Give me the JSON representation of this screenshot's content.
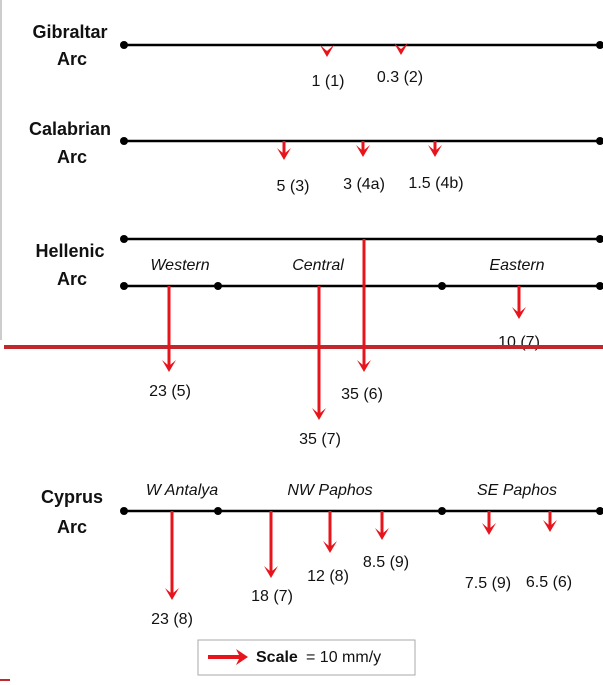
{
  "arcs": [
    {
      "name": [
        "Gibraltar",
        "Arc"
      ],
      "rates": [
        "1 (1)",
        "0.3 (2)"
      ]
    },
    {
      "name": [
        "Calabrian",
        "Arc"
      ],
      "rates": [
        "5 (3)",
        "3 (4a)",
        "1.5 (4b)"
      ]
    },
    {
      "name": [
        "Hellenic",
        "Arc"
      ],
      "segments": [
        "Western",
        "Central",
        "Eastern"
      ],
      "rates": [
        "23 (5)",
        "35 (7)",
        "35 (6)",
        "10 (7)"
      ]
    },
    {
      "name": [
        "Cyprus",
        "Arc"
      ],
      "segments": [
        "W Antalya",
        "NW Paphos",
        "SE Paphos"
      ],
      "rates": [
        "23 (8)",
        "18 (7)",
        "12 (8)",
        "8.5 (9)",
        "7.5 (9)",
        "6.5 (6)"
      ]
    }
  ],
  "legend": {
    "label": "Scale",
    "text": "= 10 mm/y"
  }
}
